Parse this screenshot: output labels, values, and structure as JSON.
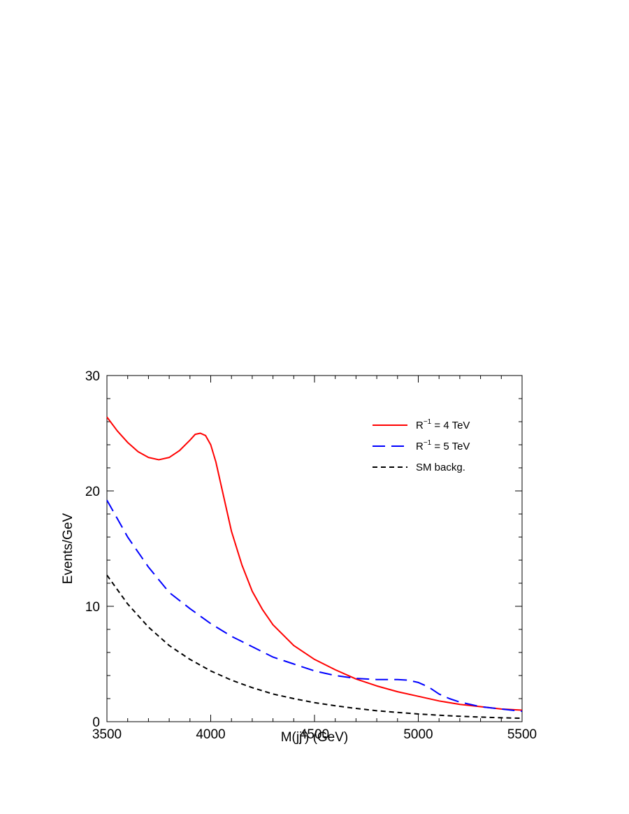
{
  "chart_data": {
    "type": "line",
    "title": "",
    "xlabel": "M(jj') (GeV)",
    "ylabel": "Events/GeV",
    "xlim": [
      3500,
      5500
    ],
    "ylim": [
      0,
      30
    ],
    "x_ticks": [
      3500,
      4000,
      4500,
      5000,
      5500
    ],
    "y_ticks": [
      0,
      10,
      20,
      30
    ],
    "x_tick_labels": [
      "3500",
      "4000",
      "4500",
      "5000",
      "5500"
    ],
    "y_tick_labels": [
      "0",
      "10",
      "20",
      "30"
    ],
    "grid": false,
    "legend_position": "top-right",
    "series": [
      {
        "name": "R⁻¹ = 4 TeV",
        "legend_base": "R",
        "legend_sup": "−1",
        "legend_rest": " = 4 TeV",
        "color": "#ff0000",
        "dash": "solid",
        "x": [
          3500,
          3550,
          3600,
          3650,
          3700,
          3750,
          3800,
          3850,
          3900,
          3925,
          3950,
          3975,
          4000,
          4025,
          4050,
          4100,
          4150,
          4200,
          4250,
          4300,
          4400,
          4500,
          4600,
          4700,
          4800,
          4900,
          5000,
          5100,
          5200,
          5300,
          5400,
          5500
        ],
        "y": [
          26.4,
          25.2,
          24.2,
          23.4,
          22.9,
          22.7,
          22.9,
          23.5,
          24.4,
          24.9,
          25.0,
          24.8,
          24.0,
          22.5,
          20.5,
          16.5,
          13.6,
          11.3,
          9.7,
          8.4,
          6.6,
          5.4,
          4.5,
          3.7,
          3.1,
          2.6,
          2.2,
          1.8,
          1.5,
          1.3,
          1.1,
          1.0
        ]
      },
      {
        "name": "R⁻¹ = 5 TeV",
        "legend_base": "R",
        "legend_sup": "−1",
        "legend_rest": " = 5 TeV",
        "color": "#0000ff",
        "dash": "long-dash",
        "x": [
          3500,
          3600,
          3700,
          3800,
          3900,
          4000,
          4100,
          4200,
          4300,
          4400,
          4500,
          4600,
          4700,
          4800,
          4900,
          4950,
          5000,
          5050,
          5100,
          5150,
          5200,
          5300,
          5400,
          5500
        ],
        "y": [
          19.2,
          16.0,
          13.4,
          11.2,
          9.8,
          8.5,
          7.4,
          6.5,
          5.6,
          5.0,
          4.4,
          4.0,
          3.75,
          3.65,
          3.65,
          3.6,
          3.4,
          3.0,
          2.4,
          2.0,
          1.7,
          1.3,
          1.1,
          0.9
        ]
      },
      {
        "name": "SM backg.",
        "color": "#000000",
        "dash": "short-dash",
        "x": [
          3500,
          3600,
          3700,
          3800,
          3900,
          4000,
          4100,
          4200,
          4300,
          4400,
          4500,
          4600,
          4700,
          4800,
          4900,
          5000,
          5100,
          5200,
          5300,
          5400,
          5500
        ],
        "y": [
          12.7,
          10.2,
          8.2,
          6.6,
          5.4,
          4.4,
          3.6,
          2.95,
          2.4,
          2.0,
          1.65,
          1.38,
          1.15,
          0.95,
          0.8,
          0.67,
          0.56,
          0.47,
          0.4,
          0.34,
          0.3
        ]
      }
    ]
  }
}
